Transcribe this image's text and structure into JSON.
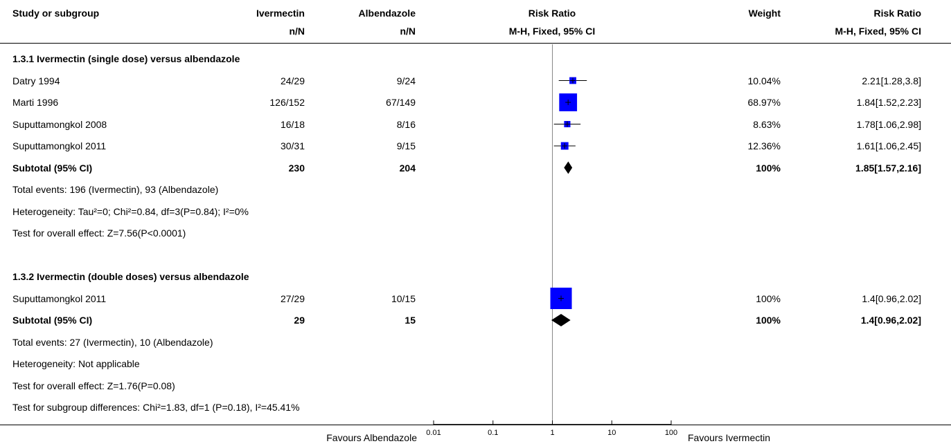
{
  "header": {
    "col_study": "Study or subgroup",
    "col_exp": "Ivermectin",
    "col_exp_sub": "n/N",
    "col_ctrl": "Albendazole",
    "col_ctrl_sub": "n/N",
    "col_plot": "Risk Ratio",
    "col_plot_sub": "M-H, Fixed, 95% CI",
    "col_weight": "Weight",
    "col_rr": "Risk Ratio",
    "col_rr_sub": "M-H, Fixed, 95% CI"
  },
  "rows": [
    {
      "kind": "group",
      "study": "1.3.1 Ivermectin (single dose) versus albendazole"
    },
    {
      "kind": "study",
      "study": "Datry 1994",
      "exp": "24/29",
      "ctrl": "9/24",
      "weight": "10.04%",
      "ci": "2.21[1.28,3.8]"
    },
    {
      "kind": "study",
      "study": "Marti 1996",
      "exp": "126/152",
      "ctrl": "67/149",
      "weight": "68.97%",
      "ci": "1.84[1.52,2.23]"
    },
    {
      "kind": "study",
      "study": "Suputtamongkol 2008",
      "exp": "16/18",
      "ctrl": "8/16",
      "weight": "8.63%",
      "ci": "1.78[1.06,2.98]"
    },
    {
      "kind": "study",
      "study": "Suputtamongkol 2011",
      "exp": "30/31",
      "ctrl": "9/15",
      "weight": "12.36%",
      "ci": "1.61[1.06,2.45]"
    },
    {
      "kind": "subtotal",
      "study": "Subtotal (95% CI)",
      "exp": "230",
      "ctrl": "204",
      "weight": "100%",
      "ci": "1.85[1.57,2.16]"
    },
    {
      "kind": "note",
      "study": "Total events: 196 (Ivermectin), 93 (Albendazole)"
    },
    {
      "kind": "note",
      "study": "Heterogeneity: Tau²=0; Chi²=0.84, df=3(P=0.84); I²=0%"
    },
    {
      "kind": "note",
      "study": "Test for overall effect: Z=7.56(P<0.0001)"
    },
    {
      "kind": "blank",
      "study": ""
    },
    {
      "kind": "group",
      "study": "1.3.2 Ivermectin (double doses) versus albendazole"
    },
    {
      "kind": "study",
      "study": "Suputtamongkol 2011",
      "exp": "27/29",
      "ctrl": "10/15",
      "weight": "100%",
      "ci": "1.4[0.96,2.02]"
    },
    {
      "kind": "subtotal",
      "study": "Subtotal (95% CI)",
      "exp": "29",
      "ctrl": "15",
      "weight": "100%",
      "ci": "1.4[0.96,2.02]"
    },
    {
      "kind": "note",
      "study": "Total events: 27 (Ivermectin), 10 (Albendazole)"
    },
    {
      "kind": "note",
      "study": "Heterogeneity: Not applicable"
    },
    {
      "kind": "note",
      "study": "Test for overall effect: Z=1.76(P=0.08)"
    },
    {
      "kind": "note",
      "study": "Test for subgroup differences: Chi²=1.83, df=1 (P=0.18), I²=45.41%"
    }
  ],
  "footer": {
    "favours_left": "Favours Albendazole",
    "favours_right": "Favours Ivermectin"
  },
  "chart_data": {
    "type": "forest",
    "scale": "log",
    "xlim": [
      0.01,
      100
    ],
    "ticks": [
      0.01,
      0.1,
      1,
      10,
      100
    ],
    "tick_labels": [
      "0.01",
      "0.1",
      "1",
      "10",
      "100"
    ],
    "null_value": 1,
    "study_color": "#0000ff",
    "summary_color": "#000000",
    "points": [
      {
        "row": 1,
        "type": "study",
        "est": 2.21,
        "lo": 1.28,
        "hi": 3.8,
        "weight": 10.04
      },
      {
        "row": 2,
        "type": "study",
        "est": 1.84,
        "lo": 1.52,
        "hi": 2.23,
        "weight": 68.97
      },
      {
        "row": 3,
        "type": "study",
        "est": 1.78,
        "lo": 1.06,
        "hi": 2.98,
        "weight": 8.63
      },
      {
        "row": 4,
        "type": "study",
        "est": 1.61,
        "lo": 1.06,
        "hi": 2.45,
        "weight": 12.36
      },
      {
        "row": 5,
        "type": "summary",
        "est": 1.85,
        "lo": 1.57,
        "hi": 2.16
      },
      {
        "row": 11,
        "type": "study",
        "est": 1.4,
        "lo": 0.96,
        "hi": 2.02,
        "weight": 100
      },
      {
        "row": 12,
        "type": "summary",
        "est": 1.4,
        "lo": 0.96,
        "hi": 2.02
      }
    ]
  }
}
